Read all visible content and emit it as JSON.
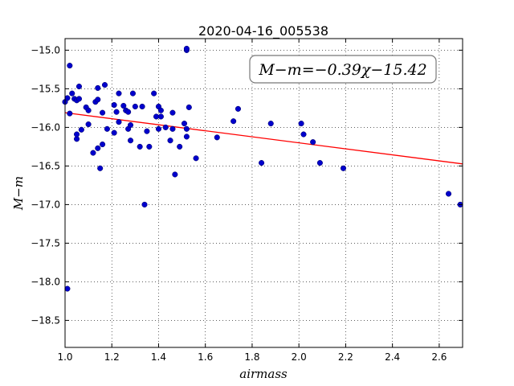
{
  "chart_data": {
    "type": "scatter",
    "title": "2020-04-16_005538",
    "xlabel": "airmass",
    "ylabel": "M−m",
    "xlim": [
      1.0,
      2.7
    ],
    "ylim": [
      -18.85,
      -14.85
    ],
    "xticks": [
      "1.0",
      "1.2",
      "1.4",
      "1.6",
      "1.8",
      "2.0",
      "2.2",
      "2.4",
      "2.6"
    ],
    "yticks": [
      "−15.0",
      "−15.5",
      "−16.0",
      "−16.5",
      "−17.0",
      "−17.5",
      "−18.0",
      "−18.5"
    ],
    "grid": true,
    "annotation": "M−m=−0.39χ−15.42",
    "fit": {
      "slope": -0.39,
      "intercept": -15.42,
      "color": "#ff0000"
    },
    "point_color": "#0000cc",
    "points": [
      [
        1.0,
        -15.67
      ],
      [
        1.01,
        -15.62
      ],
      [
        1.01,
        -18.09
      ],
      [
        1.02,
        -15.2
      ],
      [
        1.02,
        -15.82
      ],
      [
        1.03,
        -15.56
      ],
      [
        1.04,
        -15.63
      ],
      [
        1.05,
        -15.65
      ],
      [
        1.05,
        -16.15
      ],
      [
        1.05,
        -16.09
      ],
      [
        1.06,
        -15.47
      ],
      [
        1.06,
        -15.63
      ],
      [
        1.07,
        -16.03
      ],
      [
        1.09,
        -15.74
      ],
      [
        1.1,
        -15.78
      ],
      [
        1.1,
        -15.96
      ],
      [
        1.12,
        -16.33
      ],
      [
        1.13,
        -15.67
      ],
      [
        1.14,
        -15.64
      ],
      [
        1.14,
        -15.49
      ],
      [
        1.14,
        -16.27
      ],
      [
        1.15,
        -16.53
      ],
      [
        1.16,
        -16.22
      ],
      [
        1.16,
        -15.81
      ],
      [
        1.17,
        -15.45
      ],
      [
        1.18,
        -16.02
      ],
      [
        1.21,
        -15.71
      ],
      [
        1.21,
        -16.07
      ],
      [
        1.22,
        -15.8
      ],
      [
        1.23,
        -15.56
      ],
      [
        1.23,
        -15.93
      ],
      [
        1.25,
        -15.72
      ],
      [
        1.26,
        -15.78
      ],
      [
        1.27,
        -16.02
      ],
      [
        1.27,
        -15.8
      ],
      [
        1.28,
        -16.17
      ],
      [
        1.28,
        -15.97
      ],
      [
        1.29,
        -15.56
      ],
      [
        1.3,
        -15.73
      ],
      [
        1.32,
        -16.25
      ],
      [
        1.33,
        -15.73
      ],
      [
        1.34,
        -17.0
      ],
      [
        1.35,
        -16.05
      ],
      [
        1.36,
        -16.25
      ],
      [
        1.38,
        -15.56
      ],
      [
        1.39,
        -15.86
      ],
      [
        1.4,
        -16.02
      ],
      [
        1.4,
        -15.73
      ],
      [
        1.41,
        -15.78
      ],
      [
        1.41,
        -15.86
      ],
      [
        1.43,
        -16.0
      ],
      [
        1.45,
        -16.17
      ],
      [
        1.46,
        -15.81
      ],
      [
        1.46,
        -16.02
      ],
      [
        1.47,
        -16.61
      ],
      [
        1.49,
        -16.25
      ],
      [
        1.51,
        -15.95
      ],
      [
        1.52,
        -16.12
      ],
      [
        1.52,
        -15.0
      ],
      [
        1.52,
        -14.98
      ],
      [
        1.52,
        -16.02
      ],
      [
        1.53,
        -15.74
      ],
      [
        1.56,
        -16.4
      ],
      [
        1.65,
        -16.13
      ],
      [
        1.72,
        -15.92
      ],
      [
        1.74,
        -15.76
      ],
      [
        1.84,
        -16.46
      ],
      [
        1.88,
        -15.95
      ],
      [
        2.01,
        -15.95
      ],
      [
        2.02,
        -16.09
      ],
      [
        2.06,
        -16.19
      ],
      [
        2.09,
        -16.46
      ],
      [
        2.19,
        -16.53
      ],
      [
        2.64,
        -16.86
      ],
      [
        2.69,
        -17.0
      ]
    ]
  }
}
